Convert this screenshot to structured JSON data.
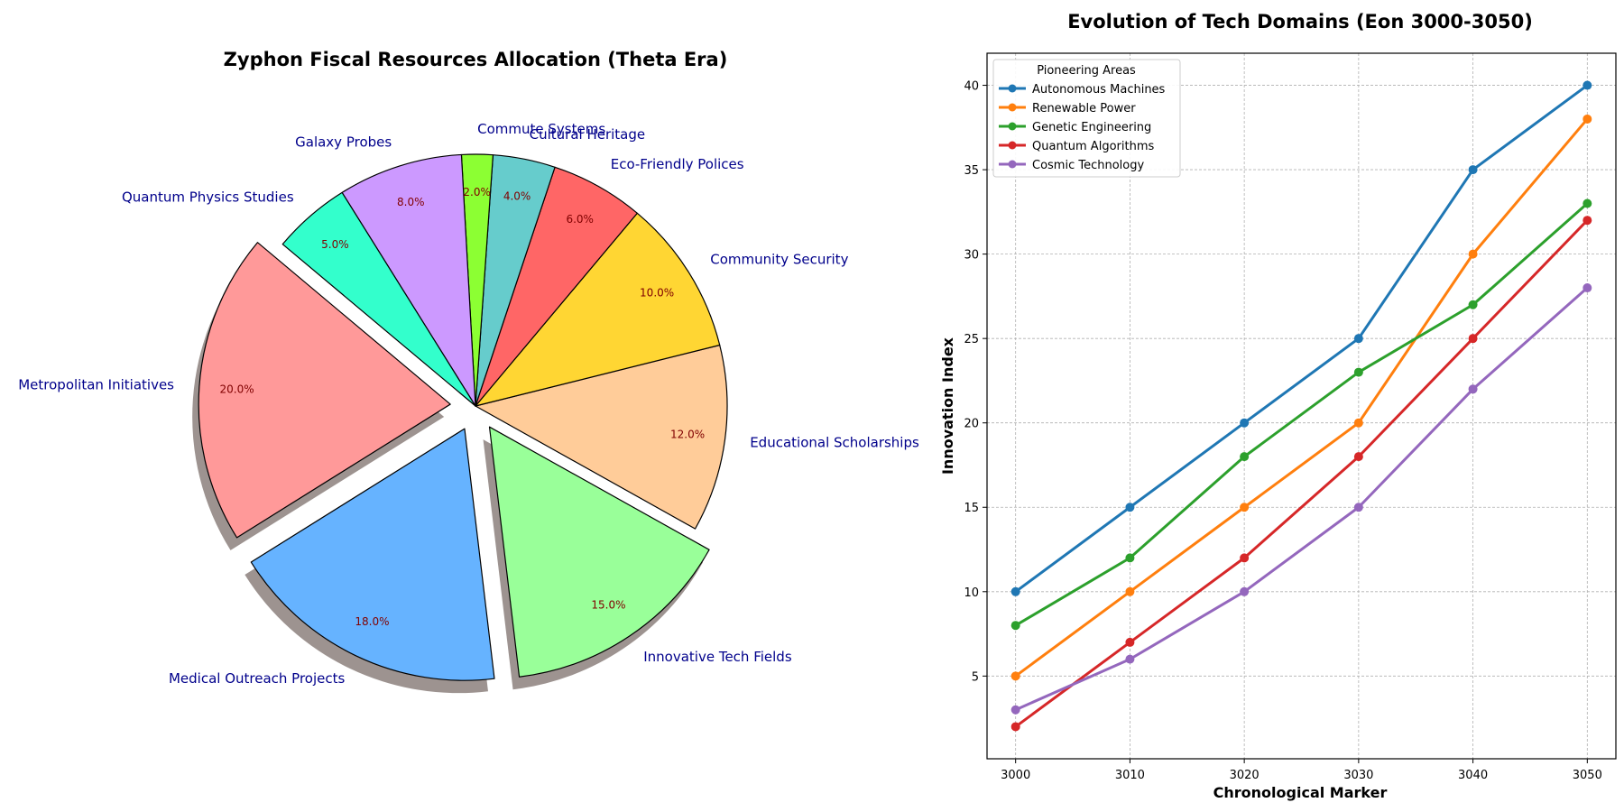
{
  "chart_data": [
    {
      "type": "pie",
      "title": "Zyphon Fiscal Resources Allocation (Theta Era)",
      "labels": [
        "Metropolitan Initiatives",
        "Medical Outreach Projects",
        "Innovative Tech Fields",
        "Educational Scholarships",
        "Community Security",
        "Eco-Friendly Polices",
        "Cultural Heritage",
        "Commute Systems",
        "Galaxy Probes",
        "Quantum Physics Studies"
      ],
      "values": [
        20,
        18,
        15,
        12,
        10,
        6,
        4,
        2,
        8,
        5
      ],
      "pct_labels": [
        "20.0%",
        "18.0%",
        "15.0%",
        "12.0%",
        "10.0%",
        "6.0%",
        "4.0%",
        "2.0%",
        "8.0%",
        "5.0%"
      ],
      "colors": [
        "#ff9999",
        "#66b3ff",
        "#99ff99",
        "#ffcc99",
        "#ffd633",
        "#ff6666",
        "#66cccc",
        "#8cff33",
        "#cc99ff",
        "#33ffcc"
      ],
      "exploded": [
        true,
        true,
        true,
        false,
        false,
        false,
        false,
        false,
        false,
        false
      ],
      "shadow": true,
      "label_color": "#00008b",
      "pct_color": "#800000"
    },
    {
      "type": "line",
      "title": "Evolution of Tech Domains (Eon 3000-3050)",
      "xlabel": "Chronological Marker",
      "ylabel": "Innovation Index",
      "x": [
        3000,
        3010,
        3020,
        3030,
        3040,
        3050
      ],
      "xlim": [
        2997.5,
        3052.5
      ],
      "ylim": [
        0.1,
        41.9
      ],
      "xticks": [
        3000,
        3010,
        3020,
        3030,
        3040,
        3050
      ],
      "yticks": [
        5,
        10,
        15,
        20,
        25,
        30,
        35,
        40
      ],
      "grid": true,
      "legend_title": "Pioneering Areas",
      "legend_position": "top-left",
      "series": [
        {
          "name": "Autonomous Machines",
          "values": [
            10,
            15,
            20,
            25,
            35,
            40
          ],
          "color": "#1f77b4"
        },
        {
          "name": "Renewable Power",
          "values": [
            5,
            10,
            15,
            20,
            30,
            38
          ],
          "color": "#ff7f0e"
        },
        {
          "name": "Genetic Engineering",
          "values": [
            8,
            12,
            18,
            23,
            27,
            33
          ],
          "color": "#2ca02c"
        },
        {
          "name": "Quantum Algorithms",
          "values": [
            2,
            7,
            12,
            18,
            25,
            32
          ],
          "color": "#d62728"
        },
        {
          "name": "Cosmic Technology",
          "values": [
            3,
            6,
            10,
            15,
            22,
            28
          ],
          "color": "#9467bd"
        }
      ]
    }
  ]
}
